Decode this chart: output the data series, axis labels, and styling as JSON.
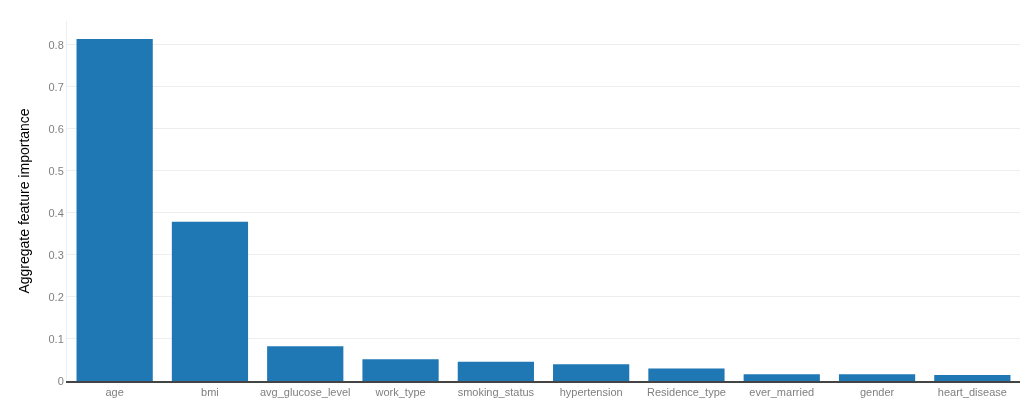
{
  "chart_data": {
    "type": "bar",
    "ylabel": "Aggregate feature importance",
    "categories": [
      "age",
      "bmi",
      "avg_glucose_level",
      "work_type",
      "smoking_status",
      "hypertension",
      "Residence_type",
      "ever_married",
      "gender",
      "heart_disease"
    ],
    "values": [
      0.814,
      0.379,
      0.083,
      0.052,
      0.046,
      0.04,
      0.03,
      0.016,
      0.016,
      0.014
    ],
    "color": "#1f77b4",
    "ylim": [
      0,
      0.857
    ],
    "yticks": [
      0,
      0.1,
      0.2,
      0.3,
      0.4,
      0.5,
      0.6,
      0.7,
      0.8
    ],
    "grid": "y"
  }
}
